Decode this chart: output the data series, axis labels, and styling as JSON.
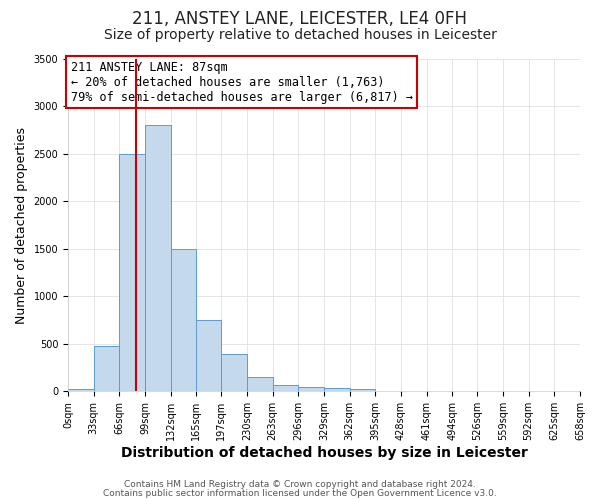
{
  "title": "211, ANSTEY LANE, LEICESTER, LE4 0FH",
  "subtitle": "Size of property relative to detached houses in Leicester",
  "xlabel": "Distribution of detached houses by size in Leicester",
  "ylabel": "Number of detached properties",
  "property_size": 87,
  "annotation_line1": "211 ANSTEY LANE: 87sqm",
  "annotation_line2": "← 20% of detached houses are smaller (1,763)",
  "annotation_line3": "79% of semi-detached houses are larger (6,817) →",
  "footer_line1": "Contains HM Land Registry data © Crown copyright and database right 2024.",
  "footer_line2": "Contains public sector information licensed under the Open Government Licence v3.0.",
  "bar_color": "#c5d9ed",
  "bar_edge_color": "#5b9bd5",
  "red_line_color": "#cc0000",
  "annotation_box_edge_color": "#cc0000",
  "background_color": "#ffffff",
  "plot_bg_color": "#ffffff",
  "bin_edges": [
    0,
    33,
    66,
    99,
    132,
    165,
    197,
    230,
    263,
    296,
    329,
    362,
    395,
    428,
    461,
    494,
    526,
    559,
    592,
    625,
    658
  ],
  "bar_heights": [
    20,
    475,
    2500,
    2800,
    1500,
    750,
    390,
    150,
    70,
    50,
    35,
    25,
    0,
    0,
    0,
    0,
    0,
    0,
    0,
    0
  ],
  "xlim": [
    0,
    658
  ],
  "ylim": [
    0,
    3500
  ],
  "yticks": [
    0,
    500,
    1000,
    1500,
    2000,
    2500,
    3000,
    3500
  ],
  "xtick_labels": [
    "0sqm",
    "33sqm",
    "66sqm",
    "99sqm",
    "132sqm",
    "165sqm",
    "197sqm",
    "230sqm",
    "263sqm",
    "296sqm",
    "329sqm",
    "362sqm",
    "395sqm",
    "428sqm",
    "461sqm",
    "494sqm",
    "526sqm",
    "559sqm",
    "592sqm",
    "625sqm",
    "658sqm"
  ],
  "grid_color": "#e0e0e0",
  "title_fontsize": 12,
  "subtitle_fontsize": 10,
  "axis_label_fontsize": 9,
  "tick_fontsize": 7,
  "annotation_fontsize": 8.5,
  "footer_fontsize": 6.5
}
